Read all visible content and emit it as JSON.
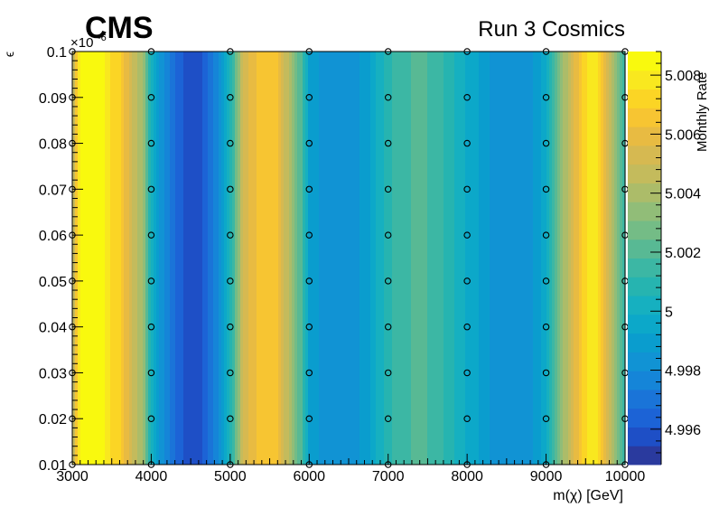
{
  "header": {
    "experiment": "CMS",
    "run_label": "Run 3 Cosmics"
  },
  "chart_data": {
    "type": "heatmap",
    "xlabel": "m(χ) [GeV]",
    "ylabel": "ϵ",
    "y_scale_note": "×10",
    "y_scale_exponent": "-6",
    "zlabel": "Monthly Rate",
    "xlim": [
      3000,
      10000
    ],
    "ylim": [
      0.01,
      0.1
    ],
    "zlim": [
      4.9948,
      5.0088
    ],
    "x_ticks": [
      3000,
      4000,
      5000,
      6000,
      7000,
      8000,
      9000,
      10000
    ],
    "x_tick_labels": [
      "3000",
      "4000",
      "5000",
      "6000",
      "7000",
      "8000",
      "9000",
      "10000"
    ],
    "y_ticks": [
      0.01,
      0.02,
      0.03,
      0.04,
      0.05,
      0.06,
      0.07,
      0.08,
      0.09,
      0.1
    ],
    "y_tick_labels": [
      "0.01",
      "0.02",
      "0.03",
      "0.04",
      "0.05",
      "0.06",
      "0.07",
      "0.08",
      "0.09",
      "0.1"
    ],
    "z_ticks": [
      4.996,
      4.998,
      5.0,
      5.002,
      5.004,
      5.006,
      5.008
    ],
    "z_tick_labels": [
      "4.996",
      "4.998",
      "5",
      "5.002",
      "5.004",
      "5.006",
      "5.008"
    ],
    "color_levels": 20,
    "rate_profile": {
      "mass": [
        3000,
        3100,
        3200,
        3300,
        3400,
        3500,
        3600,
        3700,
        3800,
        3900,
        4000,
        4100,
        4200,
        4300,
        4400,
        4500,
        4600,
        4700,
        4800,
        4900,
        5000,
        5100,
        5200,
        5300,
        5400,
        5500,
        5600,
        5700,
        5800,
        5900,
        6000,
        6200,
        6500,
        6700,
        6900,
        7100,
        7300,
        7500,
        7700,
        7900,
        8000,
        8200,
        8400,
        8600,
        8800,
        9000,
        9100,
        9200,
        9300,
        9400,
        9500,
        9600,
        9700,
        9800,
        9900,
        10000
      ],
      "monthly_rate": [
        5.004,
        5.0085,
        5.0085,
        5.0085,
        5.0082,
        5.0074,
        5.0072,
        5.0058,
        5.0045,
        5.0035,
        5.0005,
        4.9985,
        4.9975,
        4.9968,
        4.996,
        4.9955,
        4.9955,
        4.9965,
        4.9975,
        4.9988,
        5.0005,
        5.0035,
        5.0055,
        5.0062,
        5.0065,
        5.0065,
        5.0065,
        5.0048,
        5.0035,
        5.0018,
        4.999,
        4.9983,
        4.9983,
        4.9988,
        5.0003,
        5.0015,
        5.0018,
        5.0018,
        5.0012,
        5.0003,
        4.9998,
        4.999,
        4.998,
        4.998,
        4.9985,
        4.9995,
        5.0018,
        5.0035,
        5.0048,
        5.0062,
        5.0075,
        5.0082,
        5.007,
        5.0052,
        5.0032,
        5.0008
      ]
    },
    "markers": {
      "x": [
        3000,
        4000,
        5000,
        6000,
        7000,
        8000,
        9000,
        10000
      ],
      "y": [
        0.01,
        0.02,
        0.03,
        0.04,
        0.05,
        0.06,
        0.07,
        0.08,
        0.09,
        0.1
      ]
    },
    "palette": [
      "#2a3a9e",
      "#1e4fc6",
      "#1c63d6",
      "#1a74d8",
      "#1585d8",
      "#1193d4",
      "#0a9dce",
      "#0ca8c9",
      "#16b0c0",
      "#26b4b0",
      "#3cb7a4",
      "#58b994",
      "#74bc86",
      "#91bd78",
      "#acbc69",
      "#c4bb5c",
      "#d6b951",
      "#e8bb42",
      "#f7c532",
      "#fbd525",
      "#f9e81f",
      "#f9f90e"
    ]
  }
}
